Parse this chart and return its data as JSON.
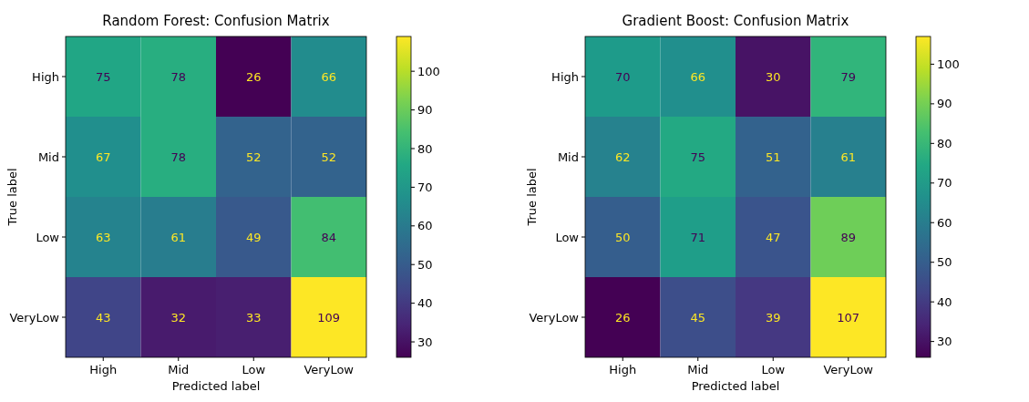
{
  "chart_data": [
    {
      "type": "heatmap",
      "title": "Random Forest: Confusion Matrix",
      "xlabel": "Predicted label",
      "ylabel": "True label",
      "categories": [
        "High",
        "Mid",
        "Low",
        "VeryLow"
      ],
      "y_categories": [
        "High",
        "Mid",
        "Low",
        "VeryLow"
      ],
      "cells": [
        [
          75,
          78,
          26,
          66
        ],
        [
          67,
          78,
          52,
          52
        ],
        [
          63,
          61,
          49,
          84
        ],
        [
          43,
          32,
          33,
          109
        ]
      ],
      "data_labels": true,
      "clim": [
        26,
        109
      ],
      "cticks": [
        30,
        40,
        50,
        60,
        70,
        80,
        90,
        100
      ]
    },
    {
      "type": "heatmap",
      "title": "Gradient Boost: Confusion Matrix",
      "xlabel": "Predicted label",
      "ylabel": "True label",
      "categories": [
        "High",
        "Mid",
        "Low",
        "VeryLow"
      ],
      "y_categories": [
        "High",
        "Mid",
        "Low",
        "VeryLow"
      ],
      "cells": [
        [
          70,
          66,
          30,
          79
        ],
        [
          62,
          75,
          51,
          61
        ],
        [
          50,
          71,
          47,
          89
        ],
        [
          26,
          45,
          39,
          107
        ]
      ],
      "data_labels": true,
      "clim": [
        26,
        107
      ],
      "cticks": [
        30,
        40,
        50,
        60,
        70,
        80,
        90,
        100
      ]
    }
  ]
}
